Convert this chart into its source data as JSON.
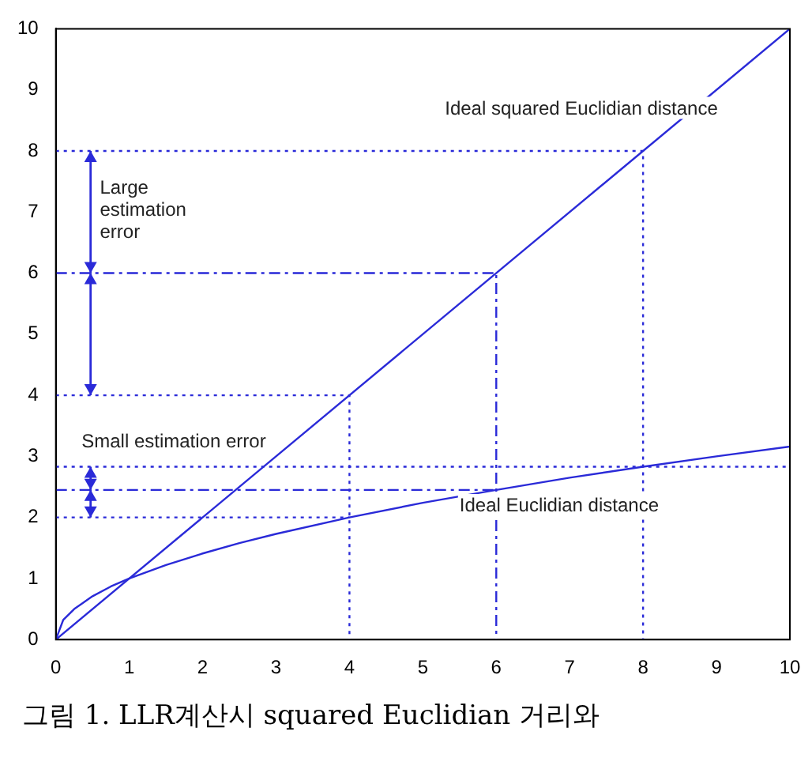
{
  "chart_data": {
    "type": "line",
    "xlim": [
      0,
      10
    ],
    "ylim": [
      0,
      10
    ],
    "xticks": [
      0,
      1,
      2,
      3,
      4,
      5,
      6,
      7,
      8,
      9,
      10
    ],
    "yticks": [
      0,
      1,
      2,
      3,
      4,
      5,
      6,
      7,
      8,
      9,
      10
    ],
    "grid": false,
    "legend": false,
    "marker": "none",
    "series": [
      {
        "color": "#2a2ad8",
        "x": [
          0,
          10
        ],
        "values": [
          0,
          10
        ],
        "line_style": "solid"
      },
      {
        "color": "#2a2ad8",
        "x": [
          0,
          0.1,
          0.25,
          0.5,
          0.75,
          1,
          1.5,
          2,
          2.5,
          3,
          4,
          5,
          6,
          7,
          8,
          9,
          10
        ],
        "values": [
          0,
          0.32,
          0.5,
          0.71,
          0.87,
          1,
          1.22,
          1.41,
          1.58,
          1.73,
          2,
          2.24,
          2.45,
          2.65,
          2.83,
          3,
          3.16
        ],
        "line_style": "solid"
      },
      {
        "color": "#2a2ad8",
        "x": [
          0,
          8,
          8
        ],
        "values": [
          8,
          8,
          0
        ],
        "line_style": "dotted"
      },
      {
        "color": "#2a2ad8",
        "x": [
          0,
          6,
          6
        ],
        "values": [
          6,
          6,
          0
        ],
        "line_style": "dashed"
      },
      {
        "color": "#2a2ad8",
        "x": [
          0,
          4,
          4
        ],
        "values": [
          4,
          4,
          0
        ],
        "line_style": "dotted"
      },
      {
        "color": "#2a2ad8",
        "x": [
          0,
          10
        ],
        "values": [
          2.83,
          2.83
        ],
        "line_style": "dotted"
      },
      {
        "color": "#2a2ad8",
        "x": [
          0,
          6
        ],
        "values": [
          2.45,
          2.45
        ],
        "line_style": "dashed"
      },
      {
        "color": "#2a2ad8",
        "x": [
          0,
          4
        ],
        "values": [
          2,
          2
        ],
        "line_style": "dotted"
      }
    ],
    "annotations": [
      "Ideal squared Euclidian distance",
      "Large\nestimation\nerror",
      "Small estimation error",
      "Ideal Euclidian distance",
      "그림 1. LLR계산시 squared Euclidian 거리와"
    ]
  }
}
